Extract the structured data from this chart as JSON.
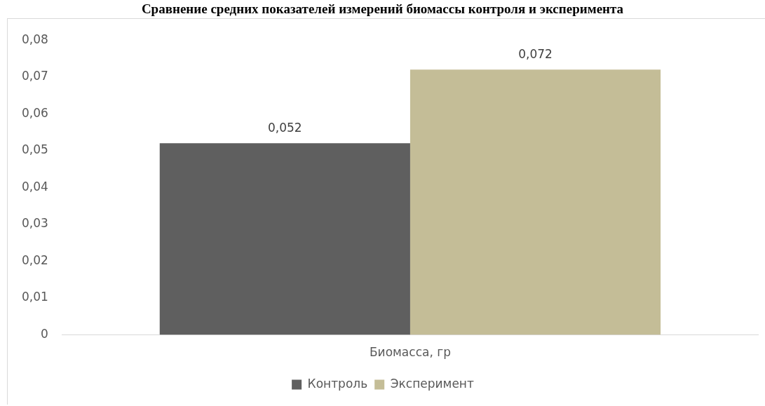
{
  "chart_data": {
    "type": "bar",
    "title": "Сравнение средних показателей измерений биомассы контроля и эксперимента",
    "categories": [
      "Биомасса, гр"
    ],
    "series": [
      {
        "name": "Контроль",
        "color": "#5f5f5f",
        "values": [
          0.052
        ],
        "value_labels": [
          "0,052"
        ]
      },
      {
        "name": "Эксперимент",
        "color": "#c4bd97",
        "values": [
          0.072
        ],
        "value_labels": [
          "0,072"
        ]
      }
    ],
    "ylim": [
      0,
      0.08
    ],
    "yticks": [
      {
        "value": 0,
        "label": "0"
      },
      {
        "value": 0.01,
        "label": "0,01"
      },
      {
        "value": 0.02,
        "label": "0,02"
      },
      {
        "value": 0.03,
        "label": "0,03"
      },
      {
        "value": 0.04,
        "label": "0,04"
      },
      {
        "value": 0.05,
        "label": "0,05"
      },
      {
        "value": 0.06,
        "label": "0,06"
      },
      {
        "value": 0.07,
        "label": "0,07"
      },
      {
        "value": 0.08,
        "label": "0,08"
      }
    ],
    "legend": "bottom"
  }
}
